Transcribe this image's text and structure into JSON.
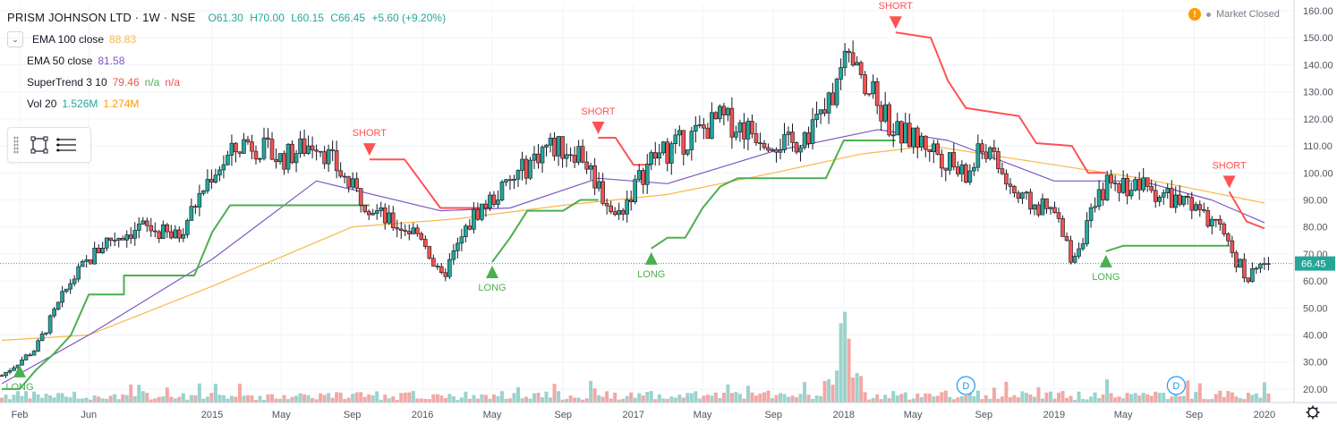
{
  "header": {
    "symbol": "PRISM JOHNSON LTD · 1W · NSE",
    "open": "O61.30",
    "high": "H70.00",
    "low": "L60.15",
    "close": "C66.45",
    "change": "+5.60 (+9.20%)",
    "market_status": "Market Closed"
  },
  "indicators": [
    {
      "label": "EMA 100 close",
      "value": "88.83",
      "color": "#f7b84b"
    },
    {
      "label": "EMA 50 close",
      "value": "81.58",
      "color": "#7e57c2"
    },
    {
      "label": "SuperTrend 3 10",
      "value": "79.46",
      "value2": "n/a",
      "value3": "n/a",
      "color": "#ef5350"
    },
    {
      "label": "Vol 20",
      "value": "1.526M",
      "value2": "1.274M",
      "color": "#26a69a",
      "color2": "#ff9800"
    }
  ],
  "colors": {
    "up": "#26a69a",
    "down": "#ef5350",
    "long": "#4caf50",
    "short": "#ff5252",
    "ema100": "#f7b84b",
    "ema50": "#7e57c2",
    "grid": "#f0f3fa",
    "axis_text": "#50535e"
  },
  "icons": [
    "collapse-chevron-icon",
    "rectangle-tool-icon",
    "menu-icon",
    "warning-icon",
    "settings-gear-icon",
    "dividend-marker-icon"
  ],
  "chart_data": {
    "type": "candlestick",
    "title": "PRISM JOHNSON LTD · 1W · NSE",
    "ylim": [
      15,
      162
    ],
    "y_ticks": [
      20,
      30,
      40,
      50,
      60,
      70,
      80,
      90,
      100,
      110,
      120,
      130,
      140,
      150,
      160
    ],
    "y_tick_labels": [
      "20.00",
      "30.00",
      "40.00",
      "50.00",
      "60.00",
      "70.00",
      "80.00",
      "90.00",
      "100.00",
      "110.00",
      "120.00",
      "130.00",
      "140.00",
      "150.00",
      "160.00"
    ],
    "x_ticks": [
      {
        "label": "Feb",
        "date": "2014-02"
      },
      {
        "label": "Jun",
        "date": "2014-06"
      },
      {
        "label": "2015",
        "date": "2015-01"
      },
      {
        "label": "May",
        "date": "2015-05"
      },
      {
        "label": "Sep",
        "date": "2015-09"
      },
      {
        "label": "2016",
        "date": "2016-01"
      },
      {
        "label": "May",
        "date": "2016-05"
      },
      {
        "label": "Sep",
        "date": "2016-09"
      },
      {
        "label": "2017",
        "date": "2017-01"
      },
      {
        "label": "May",
        "date": "2017-05"
      },
      {
        "label": "Sep",
        "date": "2017-09"
      },
      {
        "label": "2018",
        "date": "2018-01"
      },
      {
        "label": "May",
        "date": "2018-05"
      },
      {
        "label": "Sep",
        "date": "2018-09"
      },
      {
        "label": "2019",
        "date": "2019-01"
      },
      {
        "label": "May",
        "date": "2019-05"
      },
      {
        "label": "Sep",
        "date": "2019-09"
      },
      {
        "label": "2020",
        "date": "2020-01"
      }
    ],
    "price_anchors": [
      {
        "date": "2014-01",
        "close": 25
      },
      {
        "date": "2014-03",
        "close": 35
      },
      {
        "date": "2014-05",
        "close": 60
      },
      {
        "date": "2014-07",
        "close": 75
      },
      {
        "date": "2014-09",
        "close": 80
      },
      {
        "date": "2014-11",
        "close": 76
      },
      {
        "date": "2015-01",
        "close": 100
      },
      {
        "date": "2015-03",
        "close": 112
      },
      {
        "date": "2015-05",
        "close": 105
      },
      {
        "date": "2015-07",
        "close": 112
      },
      {
        "date": "2015-09",
        "close": 94
      },
      {
        "date": "2015-11",
        "close": 82
      },
      {
        "date": "2016-01",
        "close": 77
      },
      {
        "date": "2016-02",
        "close": 60
      },
      {
        "date": "2016-04",
        "close": 85
      },
      {
        "date": "2016-06",
        "close": 96
      },
      {
        "date": "2016-08",
        "close": 110
      },
      {
        "date": "2016-10",
        "close": 108
      },
      {
        "date": "2016-12",
        "close": 83
      },
      {
        "date": "2017-02",
        "close": 105
      },
      {
        "date": "2017-04",
        "close": 112
      },
      {
        "date": "2017-06",
        "close": 120
      },
      {
        "date": "2017-08",
        "close": 115
      },
      {
        "date": "2017-10",
        "close": 110
      },
      {
        "date": "2017-12",
        "close": 122
      },
      {
        "date": "2018-01",
        "close": 140
      },
      {
        "date": "2018-02",
        "close": 135
      },
      {
        "date": "2018-04",
        "close": 115
      },
      {
        "date": "2018-06",
        "close": 110
      },
      {
        "date": "2018-08",
        "close": 98
      },
      {
        "date": "2018-09",
        "close": 110
      },
      {
        "date": "2018-11",
        "close": 90
      },
      {
        "date": "2019-01",
        "close": 85
      },
      {
        "date": "2019-02",
        "close": 68
      },
      {
        "date": "2019-04",
        "close": 96
      },
      {
        "date": "2019-06",
        "close": 95
      },
      {
        "date": "2019-08",
        "close": 90
      },
      {
        "date": "2019-10",
        "close": 82
      },
      {
        "date": "2019-11",
        "close": 73
      },
      {
        "date": "2019-12",
        "close": 61
      },
      {
        "date": "2020-01",
        "close": 66.45
      }
    ],
    "ema100": [
      {
        "date": "2014-01",
        "value": 38
      },
      {
        "date": "2014-06",
        "value": 40
      },
      {
        "date": "2015-01",
        "value": 58
      },
      {
        "date": "2015-09",
        "value": 80
      },
      {
        "date": "2016-03",
        "value": 83
      },
      {
        "date": "2016-09",
        "value": 88
      },
      {
        "date": "2017-03",
        "value": 92
      },
      {
        "date": "2017-09",
        "value": 100
      },
      {
        "date": "2018-02",
        "value": 107
      },
      {
        "date": "2018-06",
        "value": 110
      },
      {
        "date": "2018-12",
        "value": 104
      },
      {
        "date": "2019-06",
        "value": 98
      },
      {
        "date": "2020-01",
        "value": 88.83
      }
    ],
    "ema50": [
      {
        "date": "2014-01",
        "value": 22
      },
      {
        "date": "2014-06",
        "value": 40
      },
      {
        "date": "2015-01",
        "value": 68
      },
      {
        "date": "2015-07",
        "value": 97
      },
      {
        "date": "2016-02",
        "value": 86
      },
      {
        "date": "2016-06",
        "value": 87
      },
      {
        "date": "2016-11",
        "value": 98
      },
      {
        "date": "2017-03",
        "value": 96
      },
      {
        "date": "2017-09",
        "value": 108
      },
      {
        "date": "2018-03",
        "value": 116
      },
      {
        "date": "2018-07",
        "value": 112
      },
      {
        "date": "2019-01",
        "value": 97
      },
      {
        "date": "2019-06",
        "value": 97
      },
      {
        "date": "2019-10",
        "value": 90
      },
      {
        "date": "2020-01",
        "value": 81.58
      }
    ],
    "supertrend": [
      {
        "trend": "long",
        "points": [
          {
            "date": "2014-01",
            "value": 20
          },
          {
            "date": "2014-02",
            "value": 20
          },
          {
            "date": "2014-03",
            "value": 27
          },
          {
            "date": "2014-04",
            "value": 33
          },
          {
            "date": "2014-05",
            "value": 40
          },
          {
            "date": "2014-06",
            "value": 55
          },
          {
            "date": "2014-08",
            "value": 55
          },
          {
            "date": "2014-08",
            "value": 62
          },
          {
            "date": "2014-12",
            "value": 62
          },
          {
            "date": "2015-01",
            "value": 78
          },
          {
            "date": "2015-02",
            "value": 88
          },
          {
            "date": "2015-10",
            "value": 88
          }
        ]
      },
      {
        "trend": "short",
        "points": [
          {
            "date": "2015-10",
            "value": 105
          },
          {
            "date": "2015-12",
            "value": 105
          },
          {
            "date": "2016-01",
            "value": 96
          },
          {
            "date": "2016-02",
            "value": 87
          },
          {
            "date": "2016-05",
            "value": 87
          }
        ]
      },
      {
        "trend": "long",
        "points": [
          {
            "date": "2016-05",
            "value": 67
          },
          {
            "date": "2016-06",
            "value": 76
          },
          {
            "date": "2016-07",
            "value": 86
          },
          {
            "date": "2016-09",
            "value": 86
          },
          {
            "date": "2016-10",
            "value": 90
          },
          {
            "date": "2016-11",
            "value": 90
          }
        ]
      },
      {
        "trend": "short",
        "points": [
          {
            "date": "2016-11",
            "value": 113
          },
          {
            "date": "2016-12",
            "value": 113
          },
          {
            "date": "2017-01",
            "value": 103
          },
          {
            "date": "2017-02",
            "value": 103
          }
        ]
      },
      {
        "trend": "long",
        "points": [
          {
            "date": "2017-02",
            "value": 72
          },
          {
            "date": "2017-03",
            "value": 76
          },
          {
            "date": "2017-04",
            "value": 76
          },
          {
            "date": "2017-05",
            "value": 87
          },
          {
            "date": "2017-06",
            "value": 95
          },
          {
            "date": "2017-07",
            "value": 98
          },
          {
            "date": "2017-12",
            "value": 98
          },
          {
            "date": "2018-01",
            "value": 112
          },
          {
            "date": "2018-04",
            "value": 112
          }
        ]
      },
      {
        "trend": "short",
        "points": [
          {
            "date": "2018-04",
            "value": 152
          },
          {
            "date": "2018-06",
            "value": 150
          },
          {
            "date": "2018-07",
            "value": 134
          },
          {
            "date": "2018-08",
            "value": 124
          },
          {
            "date": "2018-11",
            "value": 121
          },
          {
            "date": "2018-12",
            "value": 111
          },
          {
            "date": "2019-02",
            "value": 110
          },
          {
            "date": "2019-03",
            "value": 100
          },
          {
            "date": "2019-04",
            "value": 100
          }
        ]
      },
      {
        "trend": "long",
        "points": [
          {
            "date": "2019-04",
            "value": 71
          },
          {
            "date": "2019-05",
            "value": 73
          },
          {
            "date": "2019-11",
            "value": 73
          }
        ]
      },
      {
        "trend": "short",
        "points": [
          {
            "date": "2019-11",
            "value": 93
          },
          {
            "date": "2019-12",
            "value": 82
          },
          {
            "date": "2020-01",
            "value": 79.46
          }
        ]
      }
    ],
    "signals": [
      {
        "type": "long",
        "label": "LONG",
        "date": "2014-02"
      },
      {
        "type": "short",
        "label": "SHORT",
        "date": "2015-10"
      },
      {
        "type": "long",
        "label": "LONG",
        "date": "2016-05"
      },
      {
        "type": "short",
        "label": "SHORT",
        "date": "2016-11"
      },
      {
        "type": "long",
        "label": "LONG",
        "date": "2017-02"
      },
      {
        "type": "short",
        "label": "SHORT",
        "date": "2018-04"
      },
      {
        "type": "long",
        "label": "LONG",
        "date": "2019-04"
      },
      {
        "type": "short",
        "label": "SHORT",
        "date": "2019-11"
      }
    ],
    "dividend_markers": [
      {
        "label": "D",
        "date": "2018-08"
      },
      {
        "label": "D",
        "date": "2019-08"
      }
    ],
    "volume_peak_date": "2018-01",
    "current_price": 66.45,
    "current_price_label": "66.45",
    "grid": true
  }
}
